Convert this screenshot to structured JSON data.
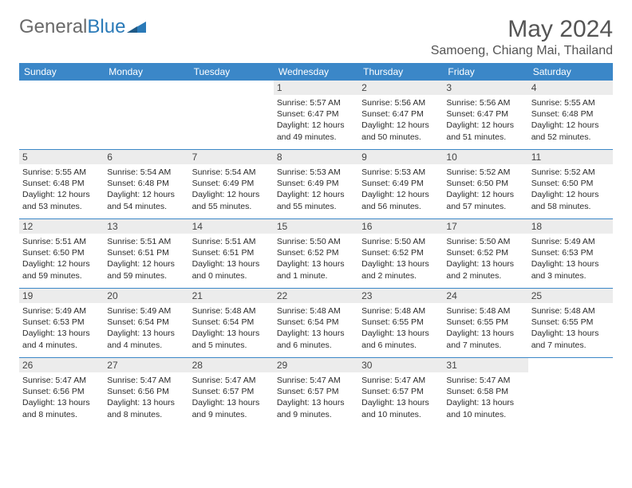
{
  "logo": {
    "text_part1": "General",
    "text_part2": "Blue"
  },
  "title": "May 2024",
  "location": "Samoeng, Chiang Mai, Thailand",
  "typography": {
    "title_fontsize": 30,
    "location_fontsize": 16,
    "dayhdr_fontsize": 12,
    "cell_fontsize": 10.5
  },
  "colors": {
    "header_bg": "#3b87c8",
    "header_fg": "#ffffff",
    "daynum_bg": "#ececec",
    "text": "#2b2b2b",
    "title_color": "#555555",
    "logo_gray": "#6a6a6a",
    "logo_blue": "#2a7ab8",
    "week_border": "#3b87c8"
  },
  "day_headers": [
    "Sunday",
    "Monday",
    "Tuesday",
    "Wednesday",
    "Thursday",
    "Friday",
    "Saturday"
  ],
  "weeks": [
    [
      {
        "empty": true
      },
      {
        "empty": true
      },
      {
        "empty": true
      },
      {
        "n": "1",
        "sr": "Sunrise: 5:57 AM",
        "ss": "Sunset: 6:47 PM",
        "d1": "Daylight: 12 hours",
        "d2": "and 49 minutes."
      },
      {
        "n": "2",
        "sr": "Sunrise: 5:56 AM",
        "ss": "Sunset: 6:47 PM",
        "d1": "Daylight: 12 hours",
        "d2": "and 50 minutes."
      },
      {
        "n": "3",
        "sr": "Sunrise: 5:56 AM",
        "ss": "Sunset: 6:47 PM",
        "d1": "Daylight: 12 hours",
        "d2": "and 51 minutes."
      },
      {
        "n": "4",
        "sr": "Sunrise: 5:55 AM",
        "ss": "Sunset: 6:48 PM",
        "d1": "Daylight: 12 hours",
        "d2": "and 52 minutes."
      }
    ],
    [
      {
        "n": "5",
        "sr": "Sunrise: 5:55 AM",
        "ss": "Sunset: 6:48 PM",
        "d1": "Daylight: 12 hours",
        "d2": "and 53 minutes."
      },
      {
        "n": "6",
        "sr": "Sunrise: 5:54 AM",
        "ss": "Sunset: 6:48 PM",
        "d1": "Daylight: 12 hours",
        "d2": "and 54 minutes."
      },
      {
        "n": "7",
        "sr": "Sunrise: 5:54 AM",
        "ss": "Sunset: 6:49 PM",
        "d1": "Daylight: 12 hours",
        "d2": "and 55 minutes."
      },
      {
        "n": "8",
        "sr": "Sunrise: 5:53 AM",
        "ss": "Sunset: 6:49 PM",
        "d1": "Daylight: 12 hours",
        "d2": "and 55 minutes."
      },
      {
        "n": "9",
        "sr": "Sunrise: 5:53 AM",
        "ss": "Sunset: 6:49 PM",
        "d1": "Daylight: 12 hours",
        "d2": "and 56 minutes."
      },
      {
        "n": "10",
        "sr": "Sunrise: 5:52 AM",
        "ss": "Sunset: 6:50 PM",
        "d1": "Daylight: 12 hours",
        "d2": "and 57 minutes."
      },
      {
        "n": "11",
        "sr": "Sunrise: 5:52 AM",
        "ss": "Sunset: 6:50 PM",
        "d1": "Daylight: 12 hours",
        "d2": "and 58 minutes."
      }
    ],
    [
      {
        "n": "12",
        "sr": "Sunrise: 5:51 AM",
        "ss": "Sunset: 6:50 PM",
        "d1": "Daylight: 12 hours",
        "d2": "and 59 minutes."
      },
      {
        "n": "13",
        "sr": "Sunrise: 5:51 AM",
        "ss": "Sunset: 6:51 PM",
        "d1": "Daylight: 12 hours",
        "d2": "and 59 minutes."
      },
      {
        "n": "14",
        "sr": "Sunrise: 5:51 AM",
        "ss": "Sunset: 6:51 PM",
        "d1": "Daylight: 13 hours",
        "d2": "and 0 minutes."
      },
      {
        "n": "15",
        "sr": "Sunrise: 5:50 AM",
        "ss": "Sunset: 6:52 PM",
        "d1": "Daylight: 13 hours",
        "d2": "and 1 minute."
      },
      {
        "n": "16",
        "sr": "Sunrise: 5:50 AM",
        "ss": "Sunset: 6:52 PM",
        "d1": "Daylight: 13 hours",
        "d2": "and 2 minutes."
      },
      {
        "n": "17",
        "sr": "Sunrise: 5:50 AM",
        "ss": "Sunset: 6:52 PM",
        "d1": "Daylight: 13 hours",
        "d2": "and 2 minutes."
      },
      {
        "n": "18",
        "sr": "Sunrise: 5:49 AM",
        "ss": "Sunset: 6:53 PM",
        "d1": "Daylight: 13 hours",
        "d2": "and 3 minutes."
      }
    ],
    [
      {
        "n": "19",
        "sr": "Sunrise: 5:49 AM",
        "ss": "Sunset: 6:53 PM",
        "d1": "Daylight: 13 hours",
        "d2": "and 4 minutes."
      },
      {
        "n": "20",
        "sr": "Sunrise: 5:49 AM",
        "ss": "Sunset: 6:54 PM",
        "d1": "Daylight: 13 hours",
        "d2": "and 4 minutes."
      },
      {
        "n": "21",
        "sr": "Sunrise: 5:48 AM",
        "ss": "Sunset: 6:54 PM",
        "d1": "Daylight: 13 hours",
        "d2": "and 5 minutes."
      },
      {
        "n": "22",
        "sr": "Sunrise: 5:48 AM",
        "ss": "Sunset: 6:54 PM",
        "d1": "Daylight: 13 hours",
        "d2": "and 6 minutes."
      },
      {
        "n": "23",
        "sr": "Sunrise: 5:48 AM",
        "ss": "Sunset: 6:55 PM",
        "d1": "Daylight: 13 hours",
        "d2": "and 6 minutes."
      },
      {
        "n": "24",
        "sr": "Sunrise: 5:48 AM",
        "ss": "Sunset: 6:55 PM",
        "d1": "Daylight: 13 hours",
        "d2": "and 7 minutes."
      },
      {
        "n": "25",
        "sr": "Sunrise: 5:48 AM",
        "ss": "Sunset: 6:55 PM",
        "d1": "Daylight: 13 hours",
        "d2": "and 7 minutes."
      }
    ],
    [
      {
        "n": "26",
        "sr": "Sunrise: 5:47 AM",
        "ss": "Sunset: 6:56 PM",
        "d1": "Daylight: 13 hours",
        "d2": "and 8 minutes."
      },
      {
        "n": "27",
        "sr": "Sunrise: 5:47 AM",
        "ss": "Sunset: 6:56 PM",
        "d1": "Daylight: 13 hours",
        "d2": "and 8 minutes."
      },
      {
        "n": "28",
        "sr": "Sunrise: 5:47 AM",
        "ss": "Sunset: 6:57 PM",
        "d1": "Daylight: 13 hours",
        "d2": "and 9 minutes."
      },
      {
        "n": "29",
        "sr": "Sunrise: 5:47 AM",
        "ss": "Sunset: 6:57 PM",
        "d1": "Daylight: 13 hours",
        "d2": "and 9 minutes."
      },
      {
        "n": "30",
        "sr": "Sunrise: 5:47 AM",
        "ss": "Sunset: 6:57 PM",
        "d1": "Daylight: 13 hours",
        "d2": "and 10 minutes."
      },
      {
        "n": "31",
        "sr": "Sunrise: 5:47 AM",
        "ss": "Sunset: 6:58 PM",
        "d1": "Daylight: 13 hours",
        "d2": "and 10 minutes."
      },
      {
        "empty": true
      }
    ]
  ]
}
